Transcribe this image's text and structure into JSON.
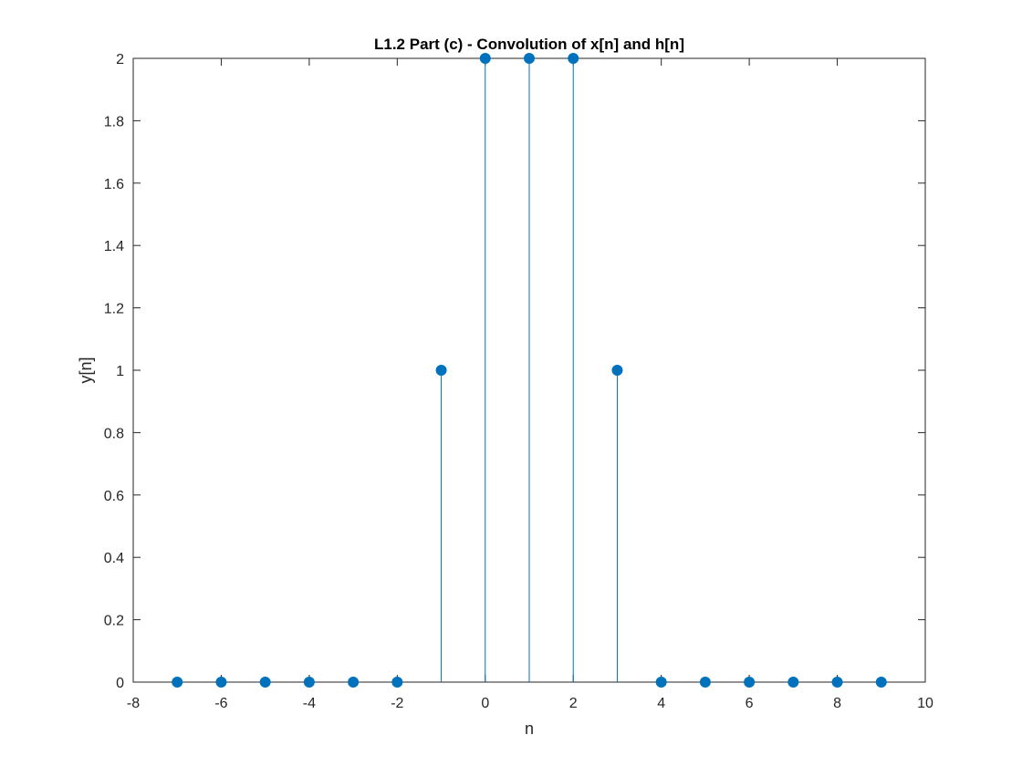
{
  "chart_data": {
    "type": "stem",
    "title": "L1.2 Part (c) - Convolution of x[n] and h[n]",
    "xlabel": "n",
    "ylabel": "y[n]",
    "xlim": [
      -8,
      10
    ],
    "ylim": [
      0,
      2
    ],
    "xticks": [
      -8,
      -6,
      -4,
      -2,
      0,
      2,
      4,
      6,
      8,
      10
    ],
    "xtick_labels": [
      "-8",
      "-6",
      "-4",
      "-2",
      "0",
      "2",
      "4",
      "6",
      "8",
      "10"
    ],
    "yticks": [
      0,
      0.2,
      0.4,
      0.6,
      0.8,
      1,
      1.2,
      1.4,
      1.6,
      1.8,
      2
    ],
    "ytick_labels": [
      "0",
      "0.2",
      "0.4",
      "0.6",
      "0.8",
      "1",
      "1.2",
      "1.4",
      "1.6",
      "1.8",
      "2"
    ],
    "grid": false,
    "series": [
      {
        "x": [
          -7,
          -6,
          -5,
          -4,
          -3,
          -2,
          -1,
          0,
          1,
          2,
          3,
          4,
          5,
          6,
          7,
          8,
          9
        ],
        "y": [
          0,
          0,
          0,
          0,
          0,
          0,
          1,
          2,
          2,
          2,
          1,
          0,
          0,
          0,
          0,
          0,
          0
        ],
        "color": "#0072BD"
      }
    ]
  }
}
